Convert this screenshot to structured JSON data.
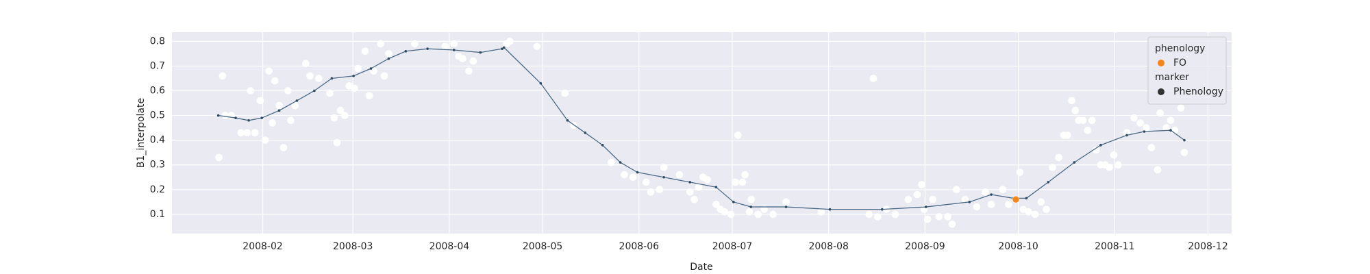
{
  "chart_data": {
    "type": "scatter",
    "xlabel": "Date",
    "ylabel": "B1_interpolate",
    "xlim": [
      1.8,
      342.6
    ],
    "ylim": [
      0.022,
      0.837
    ],
    "xticks": [
      {
        "value": 31,
        "label": "2008-02"
      },
      {
        "value": 60,
        "label": "2008-03"
      },
      {
        "value": 91,
        "label": "2008-04"
      },
      {
        "value": 121,
        "label": "2008-05"
      },
      {
        "value": 152,
        "label": "2008-06"
      },
      {
        "value": 182,
        "label": "2008-07"
      },
      {
        "value": 213,
        "label": "2008-08"
      },
      {
        "value": 244,
        "label": "2008-09"
      },
      {
        "value": 274,
        "label": "2008-10"
      },
      {
        "value": 305,
        "label": "2008-11"
      },
      {
        "value": 335,
        "label": "2008-12"
      }
    ],
    "yticks": [
      0.1,
      0.2,
      0.3,
      0.4,
      0.5,
      0.6,
      0.7,
      0.8
    ],
    "grid": true,
    "background": "#eaeaf2",
    "series": [
      {
        "type": "scatter",
        "color": "#ffffff",
        "x": [
          16.9,
          18.1,
          18.9,
          20.9,
          24,
          26,
          27.1,
          28.5,
          30.2,
          31.8,
          33,
          34.1,
          34.9,
          36.3,
          37.7,
          39.1,
          40,
          41.4,
          44.8,
          46.2,
          49,
          52.6,
          54,
          54.9,
          56,
          57.4,
          58.8,
          60.5,
          61.6,
          63.9,
          65.3,
          66.7,
          68.9,
          70.1,
          71.5,
          79.9,
          89.7,
          92.5,
          94,
          95.3,
          97.3,
          98.7,
          109.4,
          110.5,
          119.2,
          128.2,
          131,
          143.1,
          147.3,
          150.1,
          154.3,
          155.8,
          158.6,
          160,
          165,
          168.4,
          169.8,
          171.2,
          172.6,
          174,
          176.8,
          178.2,
          179.6,
          181.6,
          183,
          183.8,
          185.3,
          186.1,
          187.5,
          188.1,
          190.3,
          192.3,
          195.1,
          199.3,
          210.6,
          226,
          227.4,
          228.8,
          231.6,
          234.4,
          238.6,
          241.5,
          242.9,
          243.7,
          244.8,
          246.5,
          248.5,
          251.3,
          252.7,
          254.1,
          256.9,
          260.6,
          263.4,
          265.3,
          269,
          270.9,
          274.5,
          275.6,
          277.3,
          279.4,
          281.3,
          283,
          285,
          287,
          288.6,
          289.8,
          291.2,
          292.3,
          293.4,
          294.8,
          296.3,
          297.7,
          299,
          300.5,
          301.9,
          303.3,
          304.7,
          306.1,
          308.9,
          311.2,
          313.2,
          315.1,
          316.8,
          318.8,
          319.6,
          321.6,
          323,
          324.3,
          326.3,
          327.4
        ],
        "values": [
          0.33,
          0.66,
          0.5,
          0.5,
          0.43,
          0.43,
          0.6,
          0.43,
          0.56,
          0.4,
          0.68,
          0.47,
          0.64,
          0.54,
          0.37,
          0.6,
          0.48,
          0.54,
          0.71,
          0.66,
          0.65,
          0.59,
          0.49,
          0.39,
          0.52,
          0.5,
          0.62,
          0.61,
          0.69,
          0.76,
          0.58,
          0.68,
          0.79,
          0.66,
          0.75,
          0.79,
          0.78,
          0.79,
          0.74,
          0.73,
          0.68,
          0.72,
          0.79,
          0.8,
          0.78,
          0.59,
          0.46,
          0.31,
          0.26,
          0.25,
          0.23,
          0.19,
          0.2,
          0.29,
          0.26,
          0.19,
          0.16,
          0.21,
          0.25,
          0.24,
          0.14,
          0.12,
          0.11,
          0.1,
          0.23,
          0.42,
          0.23,
          0.26,
          0.11,
          0.16,
          0.1,
          0.12,
          0.1,
          0.15,
          0.11,
          0.1,
          0.65,
          0.09,
          0.12,
          0.1,
          0.16,
          0.18,
          0.22,
          0.12,
          0.08,
          0.16,
          0.09,
          0.09,
          0.06,
          0.2,
          0.16,
          0.13,
          0.19,
          0.14,
          0.2,
          0.14,
          0.27,
          0.12,
          0.11,
          0.1,
          0.15,
          0.12,
          0.29,
          0.33,
          0.42,
          0.42,
          0.56,
          0.52,
          0.48,
          0.48,
          0.44,
          0.48,
          0.36,
          0.3,
          0.3,
          0.29,
          0.34,
          0.3,
          0.43,
          0.49,
          0.47,
          0.45,
          0.37,
          0.28,
          0.51,
          0.45,
          0.48,
          0.44,
          0.53,
          0.35
        ]
      },
      {
        "type": "line",
        "color": "#4c6a85",
        "x": [
          16.7,
          22.3,
          26.5,
          30.7,
          36.3,
          42,
          47.6,
          53.2,
          60.2,
          65.8,
          71.5,
          77,
          84,
          92.5,
          101,
          108,
          108.6,
          120.4,
          129,
          134.7,
          140.3,
          146,
          151.5,
          160,
          168.4,
          176.8,
          182.4,
          188,
          199.3,
          213.4,
          230.2,
          244.3,
          258.3,
          265.3,
          272.4,
          276.6,
          283.6,
          292,
          300.5,
          308.9,
          314.5,
          323,
          327.4
        ],
        "values": [
          0.5,
          0.49,
          0.48,
          0.49,
          0.52,
          0.56,
          0.6,
          0.65,
          0.66,
          0.69,
          0.73,
          0.76,
          0.77,
          0.765,
          0.755,
          0.77,
          0.775,
          0.63,
          0.48,
          0.43,
          0.38,
          0.31,
          0.27,
          0.25,
          0.23,
          0.21,
          0.15,
          0.13,
          0.13,
          0.12,
          0.12,
          0.13,
          0.15,
          0.18,
          0.165,
          0.165,
          0.23,
          0.31,
          0.38,
          0.42,
          0.435,
          0.44,
          0.4
        ]
      },
      {
        "type": "scatter",
        "color": "#f58518",
        "x": [
          273.2
        ],
        "values": [
          0.16
        ]
      }
    ],
    "legend": {
      "position": "upper right",
      "groups": [
        {
          "title": "phenology",
          "entries": [
            {
              "name": "FO",
              "color": "#f58518"
            }
          ]
        },
        {
          "title": "marker",
          "entries": [
            {
              "name": "Phenology",
              "color": "#333333"
            }
          ]
        }
      ]
    }
  }
}
